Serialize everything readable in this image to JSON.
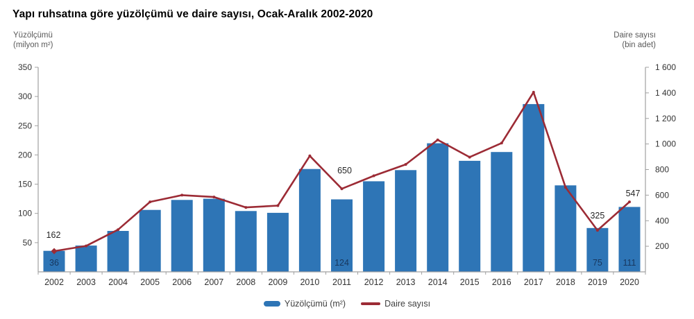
{
  "title": "Yapı ruhsatına göre yüzölçümü ve daire sayısı, Ocak-Aralık 2002-2020",
  "left_axis": {
    "title_line1": "Yüzölçümü",
    "title_line2": "(milyon m²)",
    "tick_labels": [
      "350",
      "300",
      "250",
      "200",
      "150",
      "100",
      "50"
    ],
    "tick_values": [
      350,
      300,
      250,
      200,
      150,
      100,
      50
    ],
    "min": 0,
    "max": 350
  },
  "right_axis": {
    "title_line1": "Daire sayısı",
    "title_line2": "(bin adet)",
    "tick_labels": [
      "1 600",
      "1 400",
      "1 200",
      "1 000",
      "800",
      "600",
      "400",
      "200"
    ],
    "tick_values": [
      1600,
      1400,
      1200,
      1000,
      800,
      600,
      400,
      200
    ],
    "min": 0,
    "max": 1600
  },
  "legend": [
    {
      "label": "Yüzölçümü (m²)",
      "type": "bar"
    },
    {
      "label": "Daire sayısı",
      "type": "line"
    }
  ],
  "colors": {
    "bar": "#2E75B6",
    "line": "#9C2B35",
    "axis": "#A0A0A0",
    "tick_label": "#333333",
    "x_label": "#333333",
    "bar_label": "#17365D",
    "line_label": "#262626",
    "legend_text": "#404040",
    "title": "#000000",
    "axis_header": "#595959"
  },
  "chart_data": {
    "type": "combo-bar-line",
    "title": "Yapı ruhsatına göre yüzölçümü ve daire sayısı, Ocak-Aralık 2002-2020",
    "categories": [
      2002,
      2003,
      2004,
      2005,
      2006,
      2007,
      2008,
      2009,
      2010,
      2011,
      2012,
      2013,
      2014,
      2015,
      2016,
      2017,
      2018,
      2019,
      2020
    ],
    "series": [
      {
        "name": "Yüzölçümü (m²)",
        "type": "bar",
        "axis": "left",
        "unit": "milyon m²",
        "values": [
          36,
          45,
          70,
          106,
          123,
          125,
          104,
          101,
          176,
          124,
          155,
          174,
          220,
          190,
          205,
          287,
          148,
          75,
          111
        ]
      },
      {
        "name": "Daire sayısı",
        "type": "line",
        "axis": "right",
        "unit": "bin adet",
        "values": [
          162,
          203,
          330,
          547,
          600,
          585,
          504,
          518,
          907,
          650,
          751,
          840,
          1032,
          897,
          1007,
          1405,
          661,
          325,
          547
        ]
      }
    ],
    "labeled_points": {
      "years": [
        2002,
        2011,
        2019,
        2020
      ],
      "bar_labels": [
        "36",
        "124",
        "75",
        "111"
      ],
      "line_labels": [
        "162",
        "650",
        "325",
        "547"
      ]
    },
    "left_ylim": [
      0,
      350
    ],
    "right_ylim": [
      0,
      1600
    ],
    "grid": false,
    "legend_position": "bottom"
  }
}
